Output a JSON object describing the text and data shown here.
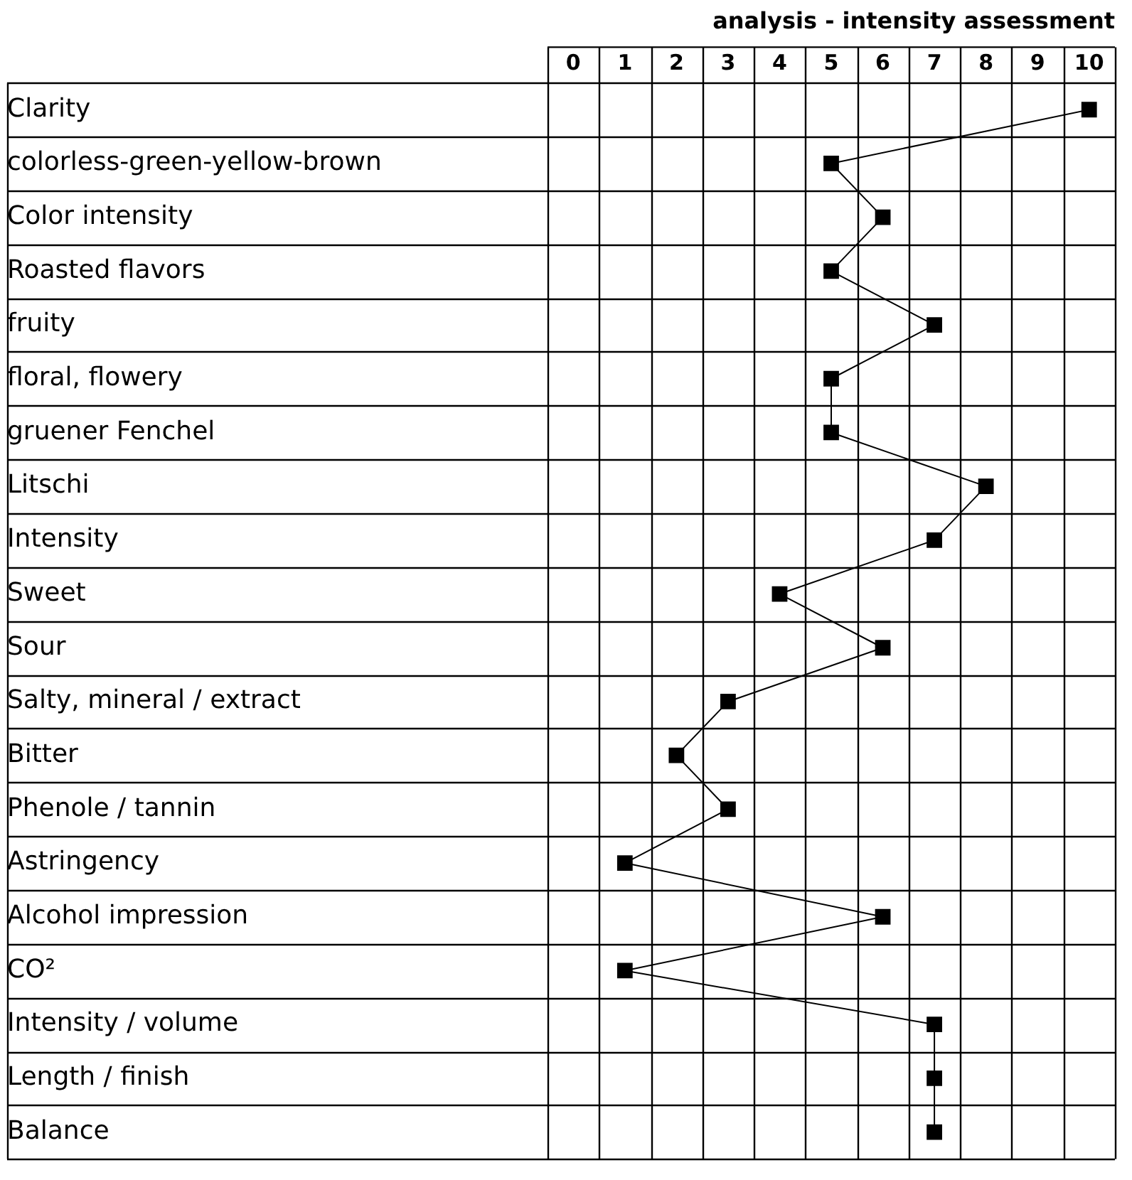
{
  "chart_data": {
    "type": "line",
    "orientation": "horizontal",
    "title": "analysis - intensity assessment",
    "categories": [
      "Clarity",
      "colorless-green-yellow-brown",
      "Color intensity",
      "Roasted flavors",
      "fruity",
      "floral, flowery",
      "gruener Fenchel",
      "Litschi",
      "Intensity",
      "Sweet",
      "Sour",
      "Salty, mineral / extract",
      "Bitter",
      "Phenole / tannin",
      "Astringency",
      "Alcohol impression",
      "CO²",
      "Intensity / volume",
      "Length / finish",
      "Balance"
    ],
    "values": [
      10,
      5,
      6,
      5,
      7,
      5,
      5,
      8,
      7,
      4,
      6,
      3,
      2,
      3,
      1,
      6,
      1,
      7,
      7,
      7
    ],
    "color": "#000000",
    "marker": "square",
    "line_style": "solid",
    "xlim": [
      -0.5,
      10.5
    ],
    "xticks": [
      0,
      1,
      2,
      3,
      4,
      5,
      6,
      7,
      8,
      9,
      10
    ],
    "grid": true,
    "legend": false
  }
}
